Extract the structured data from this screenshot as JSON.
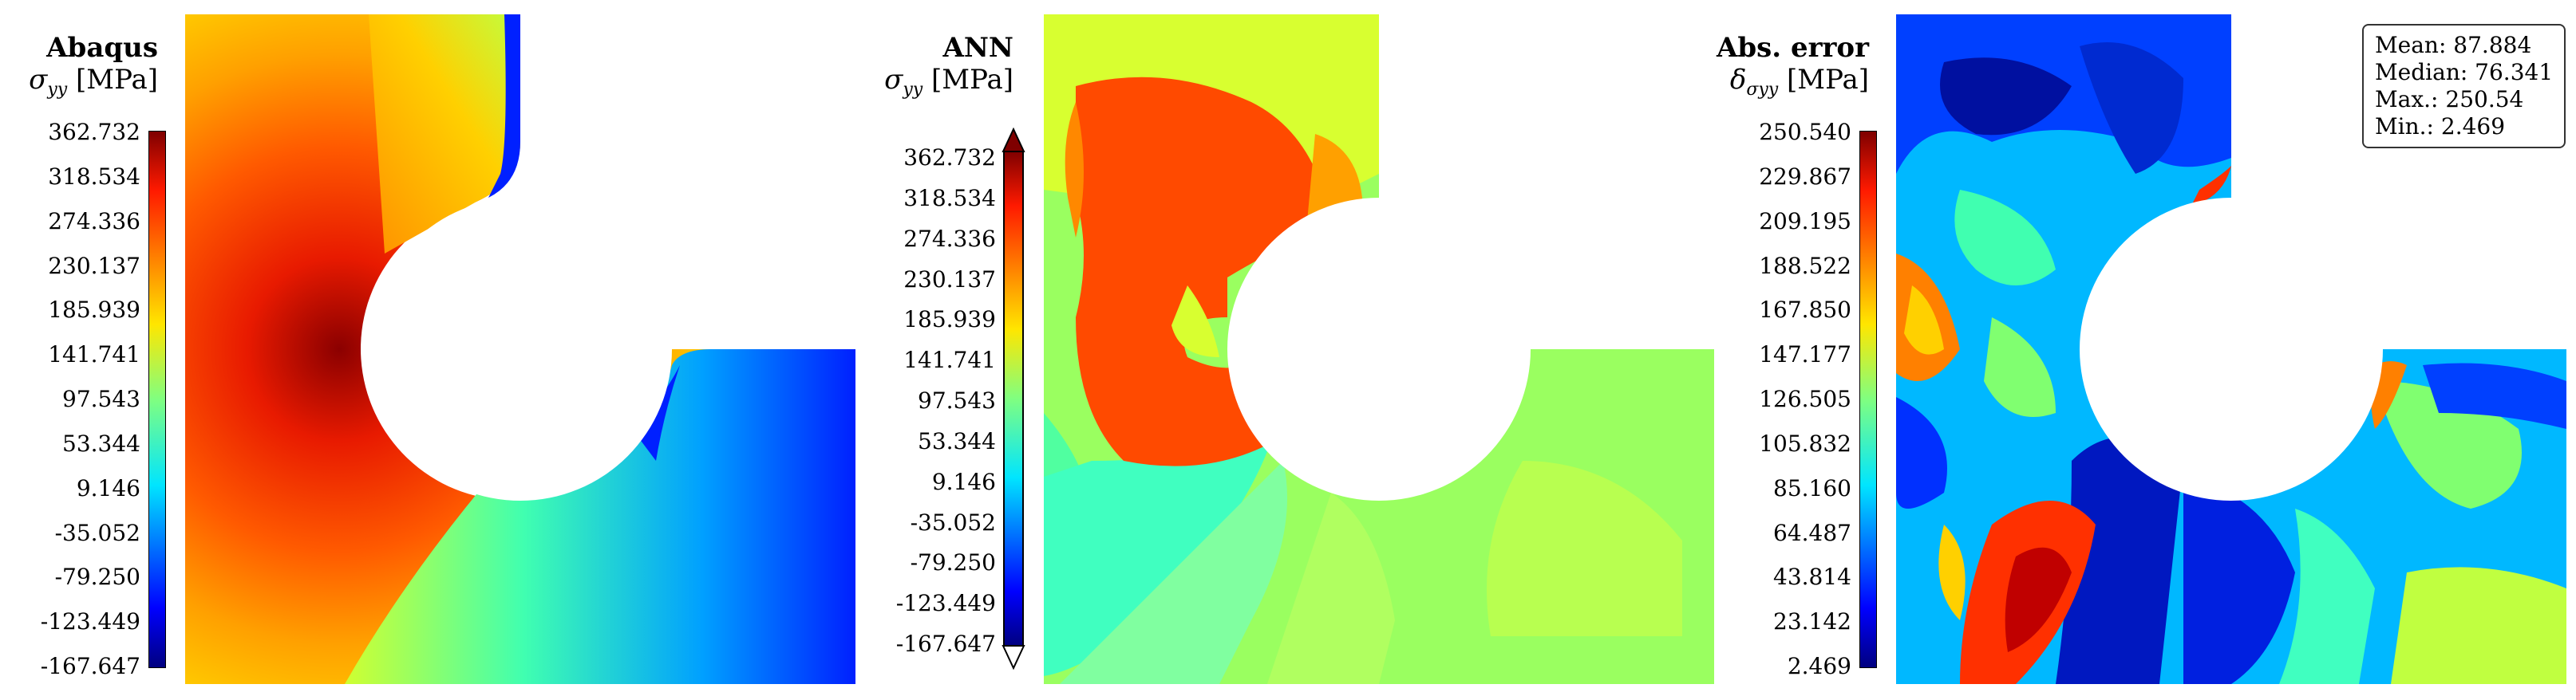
{
  "panels": [
    {
      "title": "Abaqus",
      "symbol": "σ",
      "subscript": "yy",
      "unit": "[MPa]",
      "colorbar_ticks": [
        "362.732",
        "318.534",
        "274.336",
        "230.137",
        "185.939",
        "141.741",
        "97.543",
        "53.344",
        "9.146",
        "-35.052",
        "-79.250",
        "-123.449",
        "-167.647"
      ],
      "extend_arrows": false
    },
    {
      "title": "ANN",
      "symbol": "σ",
      "subscript": "yy",
      "unit": "[MPa]",
      "colorbar_ticks": [
        "362.732",
        "318.534",
        "274.336",
        "230.137",
        "185.939",
        "141.741",
        "97.543",
        "53.344",
        "9.146",
        "-35.052",
        "-79.250",
        "-123.449",
        "-167.647"
      ],
      "extend_arrows": true
    },
    {
      "title": "Abs. error",
      "symbol": "δ",
      "subscript": "σyy",
      "unit": "[MPa]",
      "colorbar_ticks": [
        "250.540",
        "229.867",
        "209.195",
        "188.522",
        "167.850",
        "147.177",
        "126.505",
        "105.832",
        "85.160",
        "64.487",
        "43.814",
        "23.142",
        "2.469"
      ],
      "extend_arrows": false,
      "stats": {
        "mean": "Mean: 87.884",
        "median": "Median: 76.341",
        "max": "Max.: 250.54",
        "min": "Min.: 2.469"
      }
    }
  ],
  "chart_data": {
    "type": "heatmap",
    "colormap": "jet",
    "panels": [
      {
        "name": "Abaqus",
        "quantity": "σyy [MPa]",
        "range": [
          -167.647,
          362.732
        ]
      },
      {
        "name": "ANN",
        "quantity": "σyy [MPa]",
        "range": [
          -167.647,
          362.732
        ]
      },
      {
        "name": "Abs. error",
        "quantity": "δσyy [MPa]",
        "range": [
          2.469,
          250.54
        ],
        "statistics": {
          "mean": 87.884,
          "median": 76.341,
          "max": 250.54,
          "min": 2.469
        }
      }
    ]
  }
}
